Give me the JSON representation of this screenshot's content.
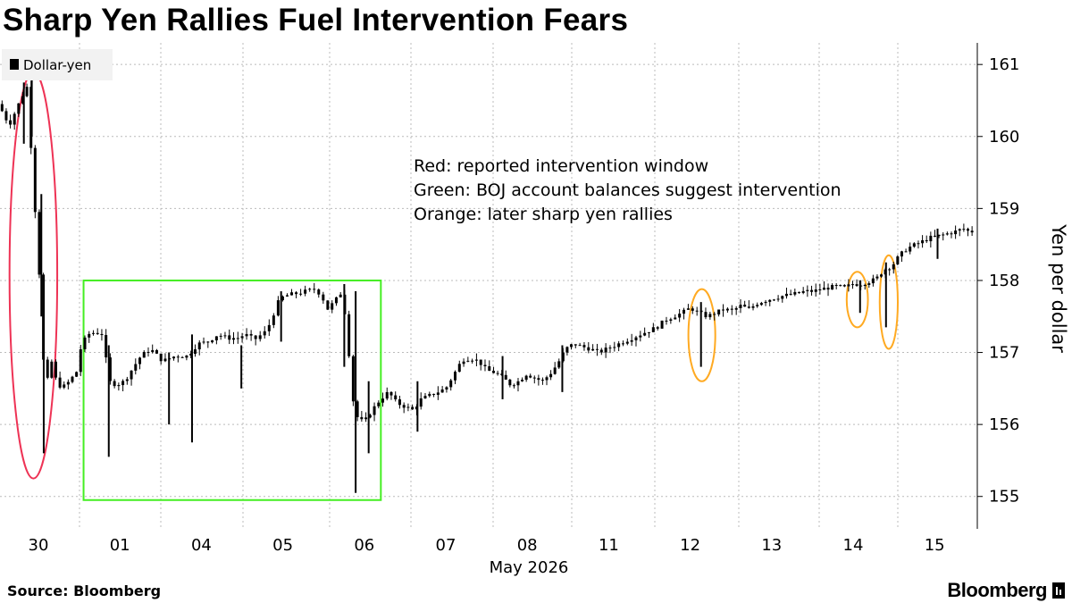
{
  "header": {
    "title": "Sharp Yen Rallies Fuel Intervention Fears"
  },
  "footer": {
    "source": "Source: Bloomberg",
    "brand": "Bloomberg"
  },
  "chart_data": {
    "type": "candlestick",
    "title": "Sharp Yen Rallies Fuel Intervention Fears",
    "ylabel": "Yen per dollar",
    "xlabel": "May 2026",
    "ylim": [
      154.55,
      161.3
    ],
    "yticks": [
      155,
      156,
      157,
      158,
      159,
      160,
      161
    ],
    "y_axis_side": "right",
    "grid": true,
    "legend": {
      "position": "top-left",
      "entries": [
        {
          "label": "Dollar-yen",
          "color": "#000000"
        }
      ]
    },
    "sessions": [
      "30",
      "01",
      "04",
      "05",
      "06",
      "07",
      "08",
      "11",
      "12",
      "13",
      "14",
      "15"
    ],
    "month_label": "May 2026",
    "annotations": [
      {
        "label": "Red: reported intervention window",
        "color": "#ee3355"
      },
      {
        "label": "Green: BOJ account balances suggest intervention",
        "color": "#44ee22"
      },
      {
        "label": "Orange: later sharp yen rallies",
        "color": "#ffaa22"
      }
    ],
    "highlights": [
      {
        "kind": "ellipse",
        "color": "#ee3355",
        "session_from": 0.12,
        "session_to": 0.72,
        "y_low": 155.25,
        "y_high": 160.9
      },
      {
        "kind": "rectangle",
        "color": "#44ee22",
        "session_from": 1.05,
        "session_to": 4.63,
        "y_low": 154.95,
        "y_high": 158.0
      },
      {
        "kind": "ellipse",
        "color": "#ffaa22",
        "session_from": 8.4,
        "session_to": 8.72,
        "y_low": 156.6,
        "y_high": 157.88
      },
      {
        "kind": "ellipse",
        "color": "#ffaa22",
        "session_from": 10.35,
        "session_to": 10.62,
        "y_low": 157.35,
        "y_high": 158.12
      },
      {
        "kind": "ellipse",
        "color": "#ffaa22",
        "session_from": 10.77,
        "session_to": 11.0,
        "y_low": 157.05,
        "y_high": 158.35
      }
    ],
    "price_path": [
      [
        0.0,
        160.45
      ],
      [
        0.08,
        160.3
      ],
      [
        0.14,
        160.15
      ],
      [
        0.22,
        160.35
      ],
      [
        0.3,
        160.55
      ],
      [
        0.38,
        160.72
      ],
      [
        0.44,
        159.3
      ],
      [
        0.5,
        158.6
      ],
      [
        0.56,
        157.1
      ],
      [
        0.6,
        156.4
      ],
      [
        0.66,
        156.95
      ],
      [
        0.72,
        156.65
      ],
      [
        0.8,
        156.5
      ],
      [
        0.9,
        156.6
      ],
      [
        1.0,
        156.75
      ],
      [
        1.04,
        157.05
      ],
      [
        1.12,
        157.25
      ],
      [
        1.22,
        157.28
      ],
      [
        1.32,
        157.25
      ],
      [
        1.38,
        156.6
      ],
      [
        1.48,
        156.55
      ],
      [
        1.58,
        156.6
      ],
      [
        1.68,
        156.78
      ],
      [
        1.78,
        156.95
      ],
      [
        1.9,
        157.05
      ],
      [
        2.05,
        156.88
      ],
      [
        2.2,
        156.95
      ],
      [
        2.35,
        156.95
      ],
      [
        2.48,
        157.12
      ],
      [
        2.6,
        157.15
      ],
      [
        2.72,
        157.25
      ],
      [
        2.84,
        157.2
      ],
      [
        2.96,
        157.2
      ],
      [
        3.05,
        157.25
      ],
      [
        3.16,
        157.18
      ],
      [
        3.3,
        157.3
      ],
      [
        3.45,
        157.75
      ],
      [
        3.55,
        157.8
      ],
      [
        3.65,
        157.82
      ],
      [
        3.75,
        157.85
      ],
      [
        3.85,
        157.88
      ],
      [
        3.93,
        157.8
      ],
      [
        4.0,
        157.6
      ],
      [
        4.08,
        157.7
      ],
      [
        4.18,
        157.85
      ],
      [
        4.25,
        157.2
      ],
      [
        4.3,
        156.4
      ],
      [
        4.38,
        156.05
      ],
      [
        4.46,
        156.05
      ],
      [
        4.55,
        156.2
      ],
      [
        4.65,
        156.35
      ],
      [
        4.75,
        156.45
      ],
      [
        4.85,
        156.3
      ],
      [
        4.95,
        156.25
      ],
      [
        5.05,
        156.2
      ],
      [
        5.15,
        156.35
      ],
      [
        5.25,
        156.4
      ],
      [
        5.35,
        156.45
      ],
      [
        5.45,
        156.5
      ],
      [
        5.55,
        156.7
      ],
      [
        5.65,
        156.9
      ],
      [
        5.75,
        156.92
      ],
      [
        5.85,
        156.88
      ],
      [
        5.95,
        156.75
      ],
      [
        6.05,
        156.72
      ],
      [
        6.15,
        156.65
      ],
      [
        6.25,
        156.55
      ],
      [
        6.35,
        156.6
      ],
      [
        6.45,
        156.7
      ],
      [
        6.55,
        156.65
      ],
      [
        6.65,
        156.6
      ],
      [
        6.75,
        156.7
      ],
      [
        6.85,
        156.85
      ],
      [
        6.95,
        157.05
      ],
      [
        7.05,
        157.12
      ],
      [
        7.15,
        157.08
      ],
      [
        7.25,
        157.05
      ],
      [
        7.35,
        157.0
      ],
      [
        7.45,
        157.05
      ],
      [
        7.55,
        157.1
      ],
      [
        7.65,
        157.15
      ],
      [
        7.75,
        157.2
      ],
      [
        7.85,
        157.25
      ],
      [
        7.95,
        157.3
      ],
      [
        8.05,
        157.35
      ],
      [
        8.15,
        157.45
      ],
      [
        8.25,
        157.5
      ],
      [
        8.35,
        157.55
      ],
      [
        8.45,
        157.62
      ],
      [
        8.55,
        157.55
      ],
      [
        8.65,
        157.5
      ],
      [
        8.75,
        157.55
      ],
      [
        8.85,
        157.6
      ],
      [
        8.95,
        157.58
      ],
      [
        9.05,
        157.65
      ],
      [
        9.15,
        157.6
      ],
      [
        9.25,
        157.68
      ],
      [
        9.35,
        157.72
      ],
      [
        9.45,
        157.75
      ],
      [
        9.55,
        157.78
      ],
      [
        9.65,
        157.8
      ],
      [
        9.75,
        157.82
      ],
      [
        9.85,
        157.85
      ],
      [
        9.95,
        157.85
      ],
      [
        10.05,
        157.88
      ],
      [
        10.15,
        157.9
      ],
      [
        10.25,
        157.92
      ],
      [
        10.35,
        157.9
      ],
      [
        10.45,
        157.95
      ],
      [
        10.55,
        157.95
      ],
      [
        10.65,
        157.98
      ],
      [
        10.75,
        158.02
      ],
      [
        10.85,
        158.15
      ],
      [
        10.95,
        158.2
      ],
      [
        11.05,
        158.35
      ],
      [
        11.15,
        158.45
      ],
      [
        11.25,
        158.5
      ],
      [
        11.35,
        158.55
      ],
      [
        11.45,
        158.6
      ],
      [
        11.55,
        158.62
      ],
      [
        11.65,
        158.65
      ],
      [
        11.75,
        158.68
      ],
      [
        11.85,
        158.72
      ],
      [
        11.92,
        158.68
      ]
    ],
    "spikes": [
      [
        0.3,
        160.75,
        159.9
      ],
      [
        0.4,
        160.8,
        160.0
      ],
      [
        0.55,
        158.0,
        155.6
      ],
      [
        0.52,
        159.2,
        157.5
      ],
      [
        1.36,
        157.1,
        155.55
      ],
      [
        2.1,
        157.0,
        156.0
      ],
      [
        2.38,
        157.25,
        155.75
      ],
      [
        2.98,
        157.1,
        156.5
      ],
      [
        3.44,
        157.85,
        157.15
      ],
      [
        4.18,
        157.95,
        156.8
      ],
      [
        4.32,
        157.85,
        155.05
      ],
      [
        4.48,
        156.6,
        155.6
      ],
      [
        5.08,
        156.6,
        155.9
      ],
      [
        6.12,
        156.95,
        156.35
      ],
      [
        6.88,
        157.1,
        156.45
      ],
      [
        8.55,
        157.7,
        156.8
      ],
      [
        10.52,
        158.0,
        157.55
      ],
      [
        10.85,
        158.25,
        157.35
      ],
      [
        11.5,
        158.72,
        158.3
      ]
    ]
  }
}
